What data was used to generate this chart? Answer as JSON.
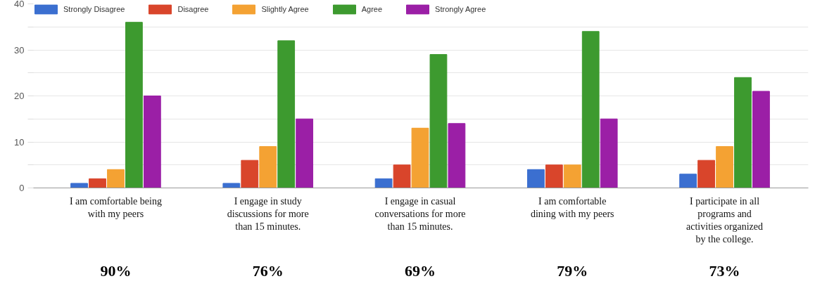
{
  "chart_data": {
    "type": "bar",
    "categories": [
      "I am comfortable being with my peers",
      "I engage in study discussions for more than 15 minutes.",
      "I engage in casual conversations for more than 15 minutes.",
      "I am comfortable dining with my peers",
      "I participate in all programs and activities organized by the college."
    ],
    "series": [
      {
        "name": "Strongly Disagree",
        "color": "#3b6fd0",
        "values": [
          1,
          1,
          2,
          4,
          3
        ]
      },
      {
        "name": "Disagree",
        "color": "#d9452b",
        "values": [
          2,
          6,
          5,
          5,
          6
        ]
      },
      {
        "name": "Slightly Agree",
        "color": "#f4a233",
        "values": [
          4,
          9,
          13,
          5,
          9
        ]
      },
      {
        "name": "Agree",
        "color": "#3d9a2f",
        "values": [
          36,
          32,
          29,
          34,
          24
        ]
      },
      {
        "name": "Strongly Agree",
        "color": "#9b1fa6",
        "values": [
          20,
          15,
          14,
          15,
          21
        ]
      }
    ],
    "ylim": [
      0,
      40
    ],
    "yticks": [
      0,
      {
        "value": 5,
        "label": null
      },
      10,
      {
        "value": 15,
        "label": null
      },
      20,
      {
        "value": 25,
        "label": null
      },
      30,
      {
        "value": 35,
        "label": null
      },
      40
    ],
    "grid": "y",
    "legend": "top",
    "annotations": [
      "90%",
      "76%",
      "69%",
      "79%",
      "73%"
    ]
  }
}
